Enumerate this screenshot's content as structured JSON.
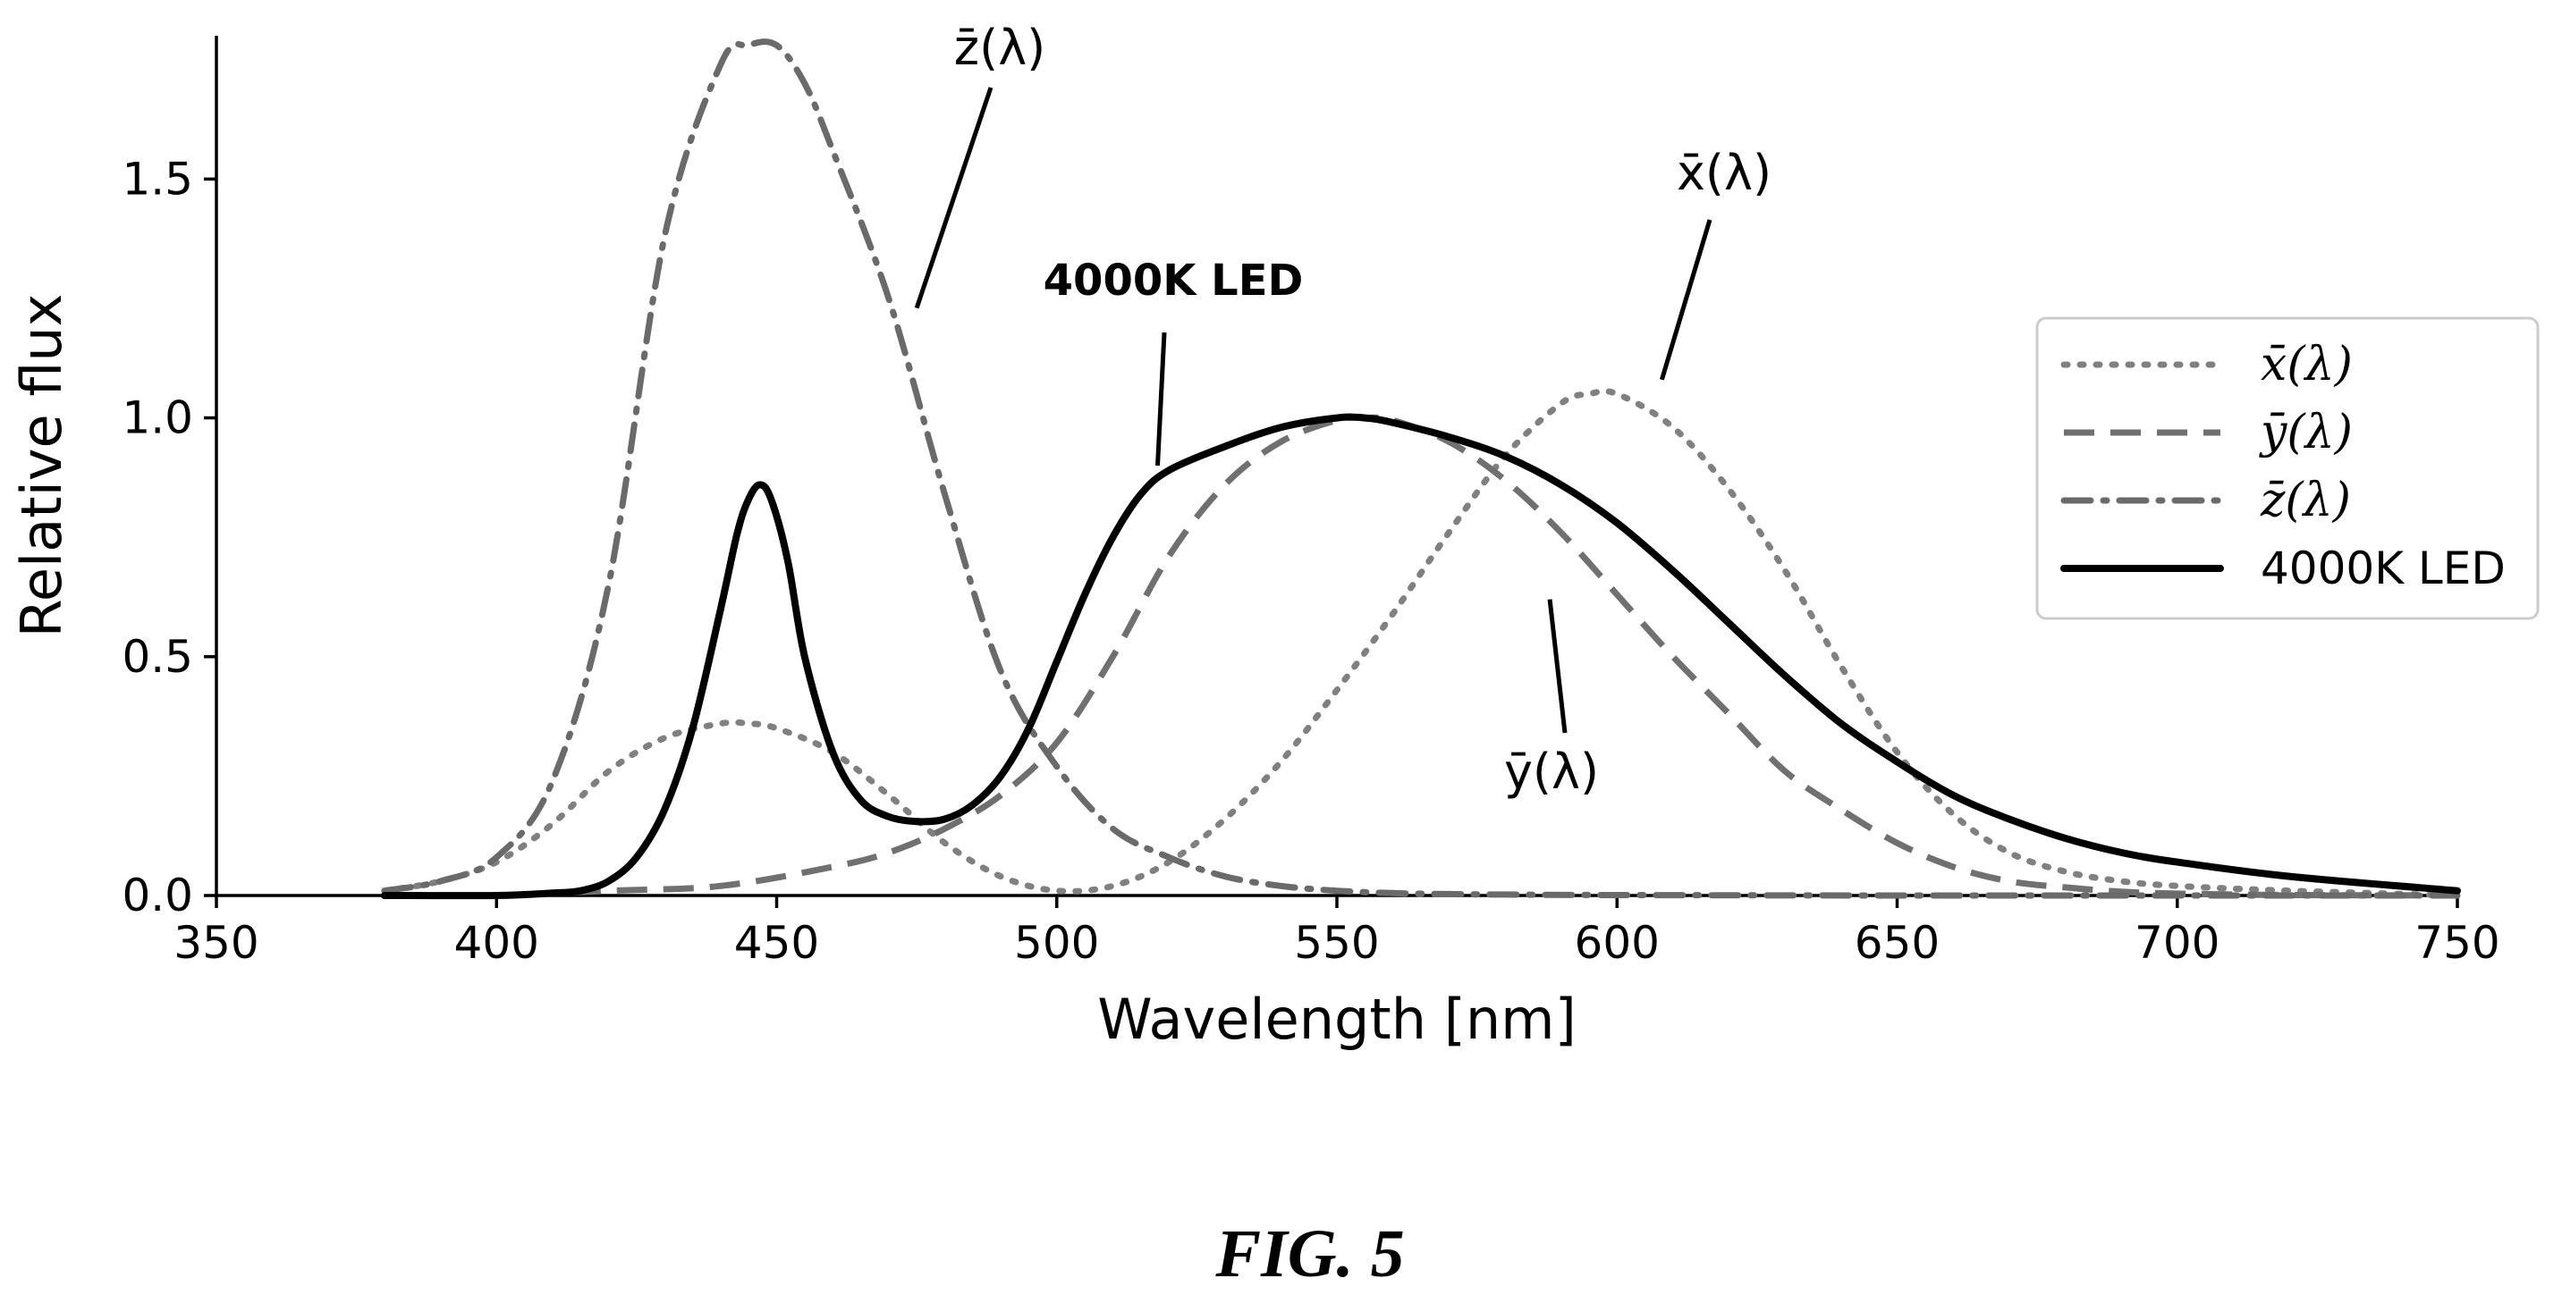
{
  "chart_data": {
    "type": "line",
    "title": "",
    "xlabel": "Wavelength [nm]",
    "ylabel": "Relative flux",
    "xlim": [
      350,
      750
    ],
    "ylim": [
      0,
      1.8
    ],
    "xticks": [
      350,
      400,
      450,
      500,
      550,
      600,
      650,
      700,
      750
    ],
    "yticks": [
      0.0,
      0.5,
      1.0,
      1.5
    ],
    "xtick_labels": [
      "350",
      "400",
      "450",
      "500",
      "550",
      "600",
      "650",
      "700",
      "750"
    ],
    "ytick_labels": [
      "0.0",
      "0.5",
      "1.0",
      "1.5"
    ],
    "grid": false,
    "legend_position": "right",
    "series": [
      {
        "name": "x̄(λ)",
        "style": "dotted",
        "color": "#808080",
        "x": [
          380,
          390,
          400,
          410,
          420,
          430,
          440,
          445,
          450,
          460,
          470,
          480,
          490,
          500,
          510,
          520,
          530,
          540,
          550,
          560,
          570,
          580,
          590,
          595,
          600,
          610,
          620,
          630,
          640,
          650,
          660,
          670,
          680,
          690,
          700,
          720,
          750
        ],
        "y": [
          0.01,
          0.03,
          0.07,
          0.15,
          0.26,
          0.33,
          0.36,
          0.36,
          0.35,
          0.3,
          0.21,
          0.11,
          0.04,
          0.01,
          0.02,
          0.07,
          0.16,
          0.28,
          0.43,
          0.59,
          0.76,
          0.92,
          1.03,
          1.05,
          1.05,
          0.98,
          0.85,
          0.68,
          0.48,
          0.3,
          0.17,
          0.09,
          0.05,
          0.03,
          0.02,
          0.01,
          0.0
        ]
      },
      {
        "name": "ȳ(λ)",
        "style": "dashed",
        "color": "#707070",
        "x": [
          380,
          400,
          420,
          440,
          460,
          470,
          480,
          490,
          500,
          510,
          520,
          530,
          540,
          550,
          555,
          560,
          570,
          580,
          590,
          600,
          610,
          620,
          630,
          640,
          650,
          660,
          670,
          680,
          690,
          700,
          720,
          750
        ],
        "y": [
          0.0,
          0.0,
          0.01,
          0.02,
          0.06,
          0.09,
          0.14,
          0.21,
          0.32,
          0.5,
          0.71,
          0.86,
          0.95,
          0.995,
          1.0,
          0.995,
          0.95,
          0.87,
          0.76,
          0.63,
          0.5,
          0.38,
          0.26,
          0.18,
          0.11,
          0.06,
          0.03,
          0.017,
          0.008,
          0.004,
          0.001,
          0.0
        ]
      },
      {
        "name": "z̄(λ)",
        "style": "dashdot",
        "color": "#6a6a6a",
        "x": [
          380,
          390,
          400,
          410,
          420,
          430,
          440,
          445,
          450,
          455,
          460,
          470,
          480,
          490,
          500,
          510,
          520,
          530,
          540,
          550,
          560,
          570,
          580,
          600,
          650,
          750
        ],
        "y": [
          0.01,
          0.03,
          0.08,
          0.24,
          0.65,
          1.38,
          1.74,
          1.78,
          1.78,
          1.7,
          1.56,
          1.25,
          0.84,
          0.47,
          0.27,
          0.14,
          0.08,
          0.04,
          0.02,
          0.01,
          0.005,
          0.003,
          0.002,
          0.001,
          0.0,
          0.0
        ]
      },
      {
        "name": "4000K LED",
        "style": "solid",
        "color": "#000000",
        "x": [
          380,
          400,
          410,
          415,
          420,
          425,
          430,
          435,
          440,
          443,
          445,
          447,
          449,
          452,
          455,
          460,
          465,
          470,
          475,
          480,
          485,
          490,
          495,
          500,
          505,
          510,
          515,
          520,
          530,
          540,
          550,
          555,
          560,
          570,
          580,
          590,
          600,
          610,
          620,
          630,
          640,
          650,
          660,
          670,
          680,
          690,
          700,
          720,
          750
        ],
        "y": [
          0.0,
          0.0,
          0.005,
          0.01,
          0.03,
          0.08,
          0.18,
          0.35,
          0.6,
          0.76,
          0.83,
          0.86,
          0.83,
          0.7,
          0.5,
          0.3,
          0.2,
          0.165,
          0.155,
          0.16,
          0.19,
          0.25,
          0.35,
          0.49,
          0.63,
          0.75,
          0.84,
          0.89,
          0.94,
          0.98,
          1.0,
          1.0,
          0.99,
          0.96,
          0.92,
          0.86,
          0.78,
          0.68,
          0.57,
          0.46,
          0.36,
          0.28,
          0.21,
          0.16,
          0.12,
          0.09,
          0.07,
          0.04,
          0.01
        ]
      }
    ],
    "annotations": [
      {
        "text": "z̄(λ)",
        "target": [
          475,
          1.23
        ]
      },
      {
        "text": "4000K LED",
        "target": [
          518,
          0.9
        ]
      },
      {
        "text": "x̄(λ)",
        "target": [
          608,
          1.08
        ]
      },
      {
        "text": "ȳ(λ)",
        "target": [
          588,
          0.62
        ]
      }
    ]
  },
  "legend": {
    "items": [
      {
        "label": "x̄(λ)",
        "style": "dotted"
      },
      {
        "label": "ȳ(λ)",
        "style": "dashed"
      },
      {
        "label": "z̄(λ)",
        "style": "dashdot"
      },
      {
        "label": "4000K LED",
        "style": "solid"
      }
    ]
  },
  "caption": "FIG. 5"
}
